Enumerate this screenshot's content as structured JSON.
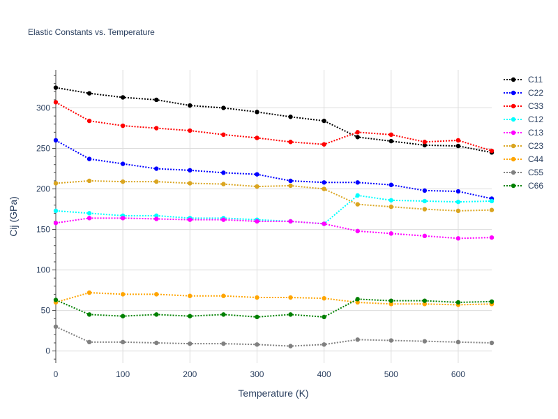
{
  "chart_data": {
    "type": "line",
    "title": "Elastic Constants vs. Temperature",
    "xlabel": "Temperature (K)",
    "ylabel": "Cij (GPa)",
    "xlim": [
      0,
      650
    ],
    "ylim": [
      -15,
      347
    ],
    "xticks": [
      0,
      100,
      200,
      300,
      400,
      500,
      600
    ],
    "yticks": [
      0,
      50,
      100,
      150,
      200,
      250,
      300
    ],
    "grid": true,
    "legend": "right",
    "x": [
      0,
      50,
      100,
      150,
      200,
      250,
      300,
      350,
      400,
      450,
      500,
      550,
      600,
      650
    ],
    "series": [
      {
        "name": "C11",
        "color": "#000000",
        "dash": "2,2",
        "values": [
          325,
          318,
          313,
          310,
          303,
          300,
          295,
          289,
          284,
          264,
          259,
          254,
          253,
          245
        ]
      },
      {
        "name": "C22",
        "color": "#0000ff",
        "dash": "2,2",
        "values": [
          260,
          237,
          231,
          225,
          223,
          220,
          218,
          210,
          208,
          208,
          205,
          198,
          197,
          188
        ]
      },
      {
        "name": "C33",
        "color": "#ff0000",
        "dash": "2,2",
        "values": [
          307,
          284,
          278,
          275,
          272,
          267,
          263,
          258,
          255,
          270,
          267,
          258,
          260,
          247
        ]
      },
      {
        "name": "C12",
        "color": "#00ffff",
        "dash": "2,2",
        "values": [
          173,
          170,
          167,
          167,
          164,
          164,
          162,
          160,
          157,
          192,
          186,
          185,
          184,
          185
        ]
      },
      {
        "name": "C13",
        "color": "#ff00ff",
        "dash": "2,2",
        "values": [
          158,
          164,
          164,
          163,
          162,
          162,
          160,
          160,
          157,
          148,
          145,
          142,
          139,
          140
        ]
      },
      {
        "name": "C23",
        "color": "#daa520",
        "dash": "2,2",
        "values": [
          207,
          210,
          209,
          209,
          207,
          206,
          203,
          204,
          200,
          181,
          178,
          175,
          173,
          174
        ]
      },
      {
        "name": "C44",
        "color": "#ffa500",
        "dash": "2,2",
        "values": [
          60,
          72,
          70,
          70,
          68,
          68,
          66,
          66,
          65,
          60,
          58,
          58,
          57,
          58
        ]
      },
      {
        "name": "C55",
        "color": "#808080",
        "dash": "2,2",
        "values": [
          30,
          11,
          11,
          10,
          9,
          9,
          8,
          6,
          8,
          14,
          13,
          12,
          11,
          10
        ]
      },
      {
        "name": "C66",
        "color": "#008000",
        "dash": "2,2",
        "values": [
          63,
          45,
          43,
          45,
          43,
          45,
          42,
          45,
          42,
          64,
          62,
          62,
          60,
          61
        ]
      }
    ]
  }
}
